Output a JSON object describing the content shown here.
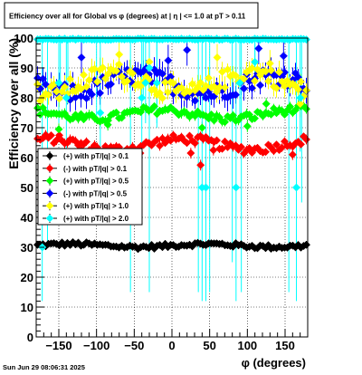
{
  "chart_data": {
    "type": "scatter",
    "title": "Efficiency over all for Global vs φ (degrees) at |  η  | <= 1.0 at pT > 0.11",
    "xlabel": "φ (degrees)",
    "ylabel": "Efficiency over all (%)",
    "xlim": [
      -180,
      180
    ],
    "ylim": [
      0,
      100
    ],
    "x_ticks": [
      -150,
      -100,
      -50,
      0,
      50,
      100,
      150
    ],
    "x_tick_labels": [
      "−150",
      "−100",
      "−50",
      "0",
      "50",
      "100",
      "150"
    ],
    "y_ticks": [
      0,
      10,
      20,
      30,
      40,
      50,
      60,
      70,
      80,
      90,
      100
    ],
    "y_tick_labels": [
      "0",
      "10",
      "20",
      "30",
      "40",
      "50",
      "60",
      "70",
      "80",
      "90",
      "100"
    ],
    "grid": true,
    "legend_position": "left-middle",
    "series": [
      {
        "name": "(+) with pT/|q| > 0.1",
        "color": "#000000",
        "marker": "diamond",
        "base": 30.6,
        "amp": 0.5,
        "noise": 0.7,
        "errbar": 0.6,
        "outliers": []
      },
      {
        "name": "(-) with pT/|q| > 0.1",
        "color": "#ff0000",
        "marker": "diamond",
        "base": 64.5,
        "amp": 1.8,
        "noise": 1.5,
        "errbar": 1.2,
        "outliers": [
          [
            38,
            57.5
          ],
          [
            55,
            62.5
          ],
          [
            -42,
            61.5
          ],
          [
            160,
            61.0
          ],
          [
            25,
            61.5
          ],
          [
            -120,
            62.5
          ]
        ]
      },
      {
        "name": "(+) with pT/|q| > 0.5",
        "color": "#00ff00",
        "marker": "diamond",
        "base": 74.5,
        "amp": 1.5,
        "noise": 1.4,
        "errbar": 1.3,
        "outliers": [
          [
            -150,
            69.5
          ],
          [
            40,
            70.0
          ],
          [
            100,
            70.5
          ],
          [
            -85,
            71.0
          ],
          [
            125,
            78.0
          ]
        ]
      },
      {
        "name": "(-) with pT/|q| > 0.5",
        "color": "#0000ff",
        "marker": "diamond",
        "base": 84.5,
        "amp": 3.0,
        "noise": 3.0,
        "errbar": 3.5,
        "outliers": [
          [
            -120,
            93.5
          ],
          [
            20,
            96.0
          ],
          [
            115,
            96.5
          ],
          [
            148,
            94.0
          ],
          [
            -5,
            92.5
          ]
        ]
      },
      {
        "name": "(+) with pT/|q| > 1.0",
        "color": "#ffff00",
        "marker": "diamond",
        "base": 85.0,
        "amp": 3.5,
        "noise": 3.2,
        "errbar": 3.0,
        "outliers": [
          [
            -70,
            94.5
          ],
          [
            -30,
            92.0
          ],
          [
            60,
            93.5
          ],
          [
            130,
            91.5
          ],
          [
            170,
            78.0
          ]
        ]
      },
      {
        "name": "(+) with pT/|q| > 2.0",
        "color": "#00ffff",
        "marker": "diamond",
        "base": 99.6,
        "amp": 0,
        "noise": 0.2,
        "errbar": 0.4,
        "outliers": [
          [
            -172,
            30.0
          ],
          [
            -150,
            85.0
          ],
          [
            -140,
            80.0
          ],
          [
            -95,
            75.0
          ],
          [
            -40,
            80.0
          ],
          [
            -35,
            85.0
          ],
          [
            -30,
            90.0
          ],
          [
            -20,
            85.0
          ],
          [
            40,
            50.0
          ],
          [
            45,
            50.0
          ],
          [
            85,
            50.0
          ],
          [
            90,
            85.0
          ],
          [
            110,
            92.0
          ],
          [
            165,
            50.0
          ],
          [
            170,
            80.0
          ]
        ]
      }
    ]
  },
  "timestamp": "Sun Jun 29 08:06:31 2025",
  "colors": {
    "frame": "#000000",
    "grid": "#000000",
    "background": "#ffffff"
  }
}
